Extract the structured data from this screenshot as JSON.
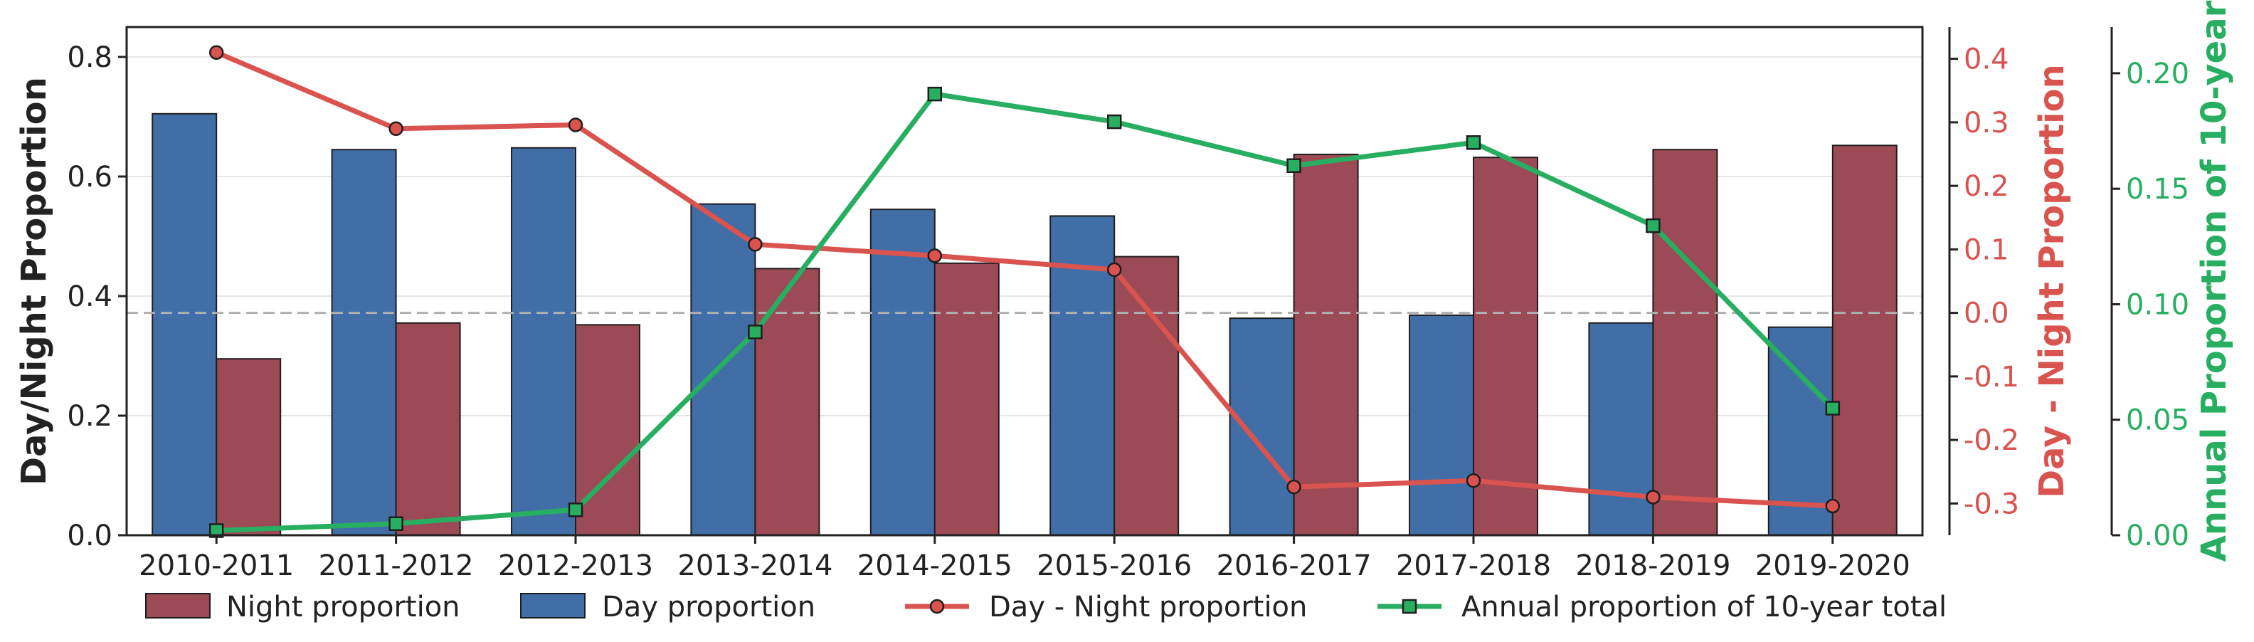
{
  "chart_data": {
    "type": "bar",
    "categories": [
      "2010-2011",
      "2011-2012",
      "2012-2013",
      "2013-2014",
      "2014-2015",
      "2015-2016",
      "2016-2017",
      "2017-2018",
      "2018-2019",
      "2019-2020"
    ],
    "ylabel": "Day/Night Proportion",
    "ylabel_right1": "Day - Night Proportion",
    "ylabel_right2": "Annual Proportion of 10-year",
    "ylim": [
      0,
      0.85
    ],
    "ylim_right1": [
      -0.35,
      0.45
    ],
    "ylim_right2": [
      0,
      0.22
    ],
    "yticks": [
      "0.0",
      "0.2",
      "0.4",
      "0.6",
      "0.8"
    ],
    "yticks_right1": [
      "-0.3",
      "-0.2",
      "-0.1",
      "0.0",
      "0.1",
      "0.2",
      "0.3",
      "0.4"
    ],
    "yticks_right2": [
      "0.00",
      "0.05",
      "0.10",
      "0.15",
      "0.20"
    ],
    "series": [
      {
        "name": "Night proportion",
        "kind": "bar",
        "axis": "left",
        "color": "#9b4a56",
        "values": [
          0.295,
          0.355,
          0.352,
          0.446,
          0.455,
          0.466,
          0.637,
          0.632,
          0.645,
          0.652
        ]
      },
      {
        "name": "Day proportion",
        "kind": "bar",
        "axis": "left",
        "color": "#416ea6",
        "values": [
          0.705,
          0.645,
          0.648,
          0.554,
          0.545,
          0.534,
          0.363,
          0.368,
          0.355,
          0.348
        ]
      },
      {
        "name": "Day - Night proportion",
        "kind": "line",
        "marker": "circle",
        "axis": "right1",
        "color": "#d9534f",
        "values": [
          0.41,
          0.29,
          0.296,
          0.108,
          0.09,
          0.068,
          -0.274,
          -0.264,
          -0.29,
          -0.304
        ]
      },
      {
        "name": "Annual proportion of 10-year total",
        "kind": "line",
        "marker": "square",
        "axis": "right2",
        "color": "#27ae60",
        "values": [
          0.002,
          0.005,
          0.011,
          0.088,
          0.191,
          0.179,
          0.16,
          0.17,
          0.134,
          0.055
        ]
      }
    ],
    "reference_line": {
      "axis": "right1",
      "value": 0.0,
      "style": "dashed",
      "color": "#b0b0b0"
    },
    "grid": true,
    "legend_position": "bottom"
  }
}
